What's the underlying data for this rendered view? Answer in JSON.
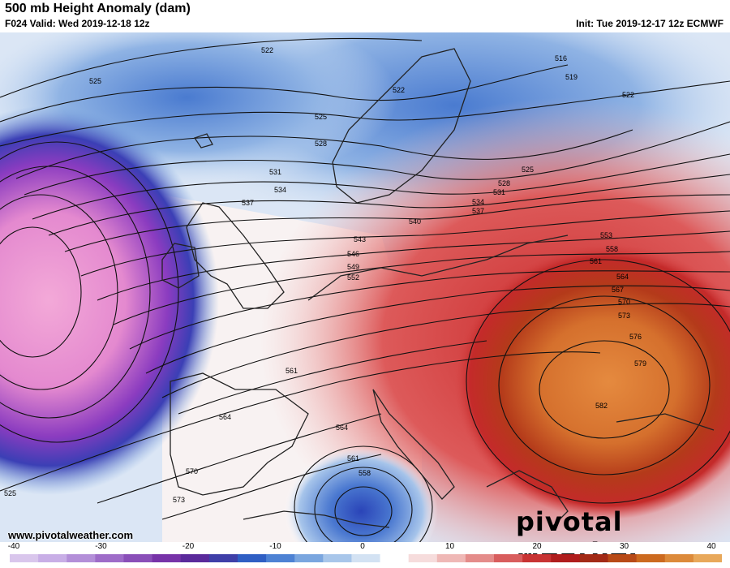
{
  "header": {
    "title": "500 mb Height Anomaly (dam)",
    "valid": "F024 Valid: Wed 2019-12-18 12z",
    "init": "Init: Tue 2019-12-17 12z ECMWF"
  },
  "footer": {
    "website": "www.pivotalweather.com",
    "brand": "pivotal weather"
  },
  "contour_labels": [
    "522",
    "525",
    "516",
    "519",
    "522",
    "522",
    "525",
    "528",
    "531",
    "534",
    "537",
    "540",
    "543",
    "546",
    "549",
    "552",
    "553",
    "558",
    "561",
    "564",
    "567",
    "570",
    "573",
    "576",
    "579",
    "582",
    "525",
    "528",
    "531",
    "534",
    "537",
    "561",
    "564",
    "561",
    "558",
    "564",
    "570",
    "573",
    "525"
  ],
  "colorbar": {
    "ticks": [
      "-40",
      "-30",
      "-20",
      "-10",
      "0",
      "10",
      "20",
      "30",
      "40"
    ],
    "colors": [
      "#d9c6ec",
      "#c8aee6",
      "#b38fd8",
      "#9e6cc8",
      "#8a4fb8",
      "#7733a8",
      "#5a2a9b",
      "#3f3fa8",
      "#2f5fc4",
      "#4d82d4",
      "#7aa6df",
      "#a8c6ea",
      "#d3e2f3",
      "#ffffff",
      "#f6dcdc",
      "#efb8b6",
      "#e48c8a",
      "#d85d5d",
      "#c83333",
      "#b01d1d",
      "#a32a16",
      "#b84a17",
      "#cc6a1f",
      "#dc8a3a",
      "#e8a85a"
    ]
  }
}
